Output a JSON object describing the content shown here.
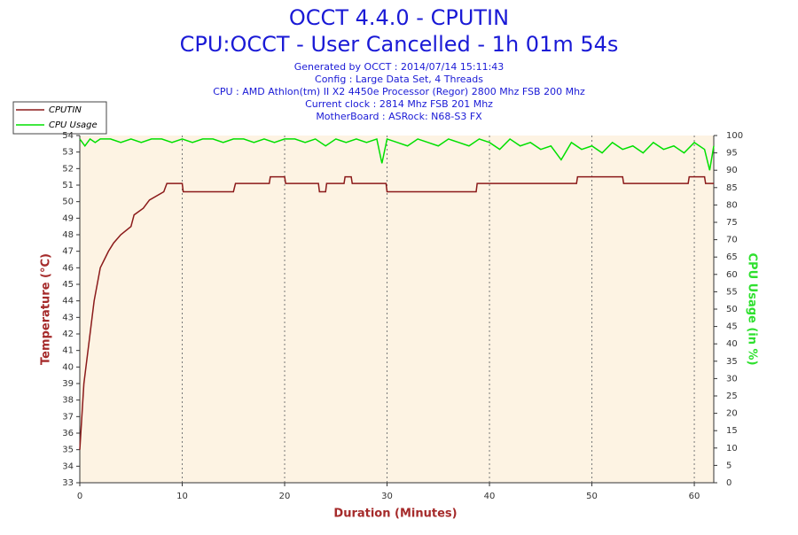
{
  "chart_data": {
    "type": "line",
    "title": "OCCT 4.4.0 - CPUTIN",
    "subtitle": "CPU:OCCT - User Cancelled - 1h 01m 54s",
    "info": [
      "Generated by OCCT : 2014/07/14 15:11:43",
      "Config : Large Data Set, 4 Threads",
      "CPU : AMD Athlon(tm) II X2 4450e Processor (Regor) 2800 Mhz FSB 200 Mhz",
      "Current clock : 2814 Mhz FSB 201 Mhz",
      "MotherBoard : ASRock: N68-S3 FX"
    ],
    "xlabel": "Duration (Minutes)",
    "ylabel": "Temperature (°C)",
    "y2label": "CPU Usage (in %)",
    "xlim": [
      0,
      61.9
    ],
    "xticks": [
      0,
      10,
      20,
      30,
      40,
      50,
      60
    ],
    "ylim": [
      33,
      54
    ],
    "yticks": [
      33,
      34,
      35,
      36,
      37,
      38,
      39,
      40,
      41,
      42,
      43,
      44,
      45,
      46,
      47,
      48,
      49,
      50,
      51,
      52,
      53,
      54
    ],
    "y2lim": [
      0,
      100
    ],
    "y2ticks": [
      0,
      5,
      10,
      15,
      20,
      25,
      30,
      35,
      40,
      45,
      50,
      55,
      60,
      65,
      70,
      75,
      80,
      85,
      90,
      95,
      100
    ],
    "grid": true,
    "legend": "top-left",
    "series": [
      {
        "name": "CPUTIN",
        "color": "#8b1a1a",
        "x": [
          0,
          0.1,
          0.2,
          0.3,
          0.4,
          0.6,
          0.8,
          1.0,
          1.2,
          1.4,
          1.7,
          2.0,
          2.4,
          2.8,
          3.3,
          4.0,
          5.0,
          5.3,
          6.2,
          6.8,
          8.2,
          8.5,
          10.0,
          10.1,
          15.0,
          15.2,
          18.5,
          18.6,
          20.0,
          20.1,
          23.3,
          23.4,
          24.0,
          24.1,
          25.8,
          25.9,
          26.5,
          26.6,
          29.9,
          30.0,
          31.1,
          38.7,
          38.8,
          48.5,
          48.6,
          53.0,
          53.1,
          59.4,
          59.5,
          61.0,
          61.1,
          61.9
        ],
        "values": [
          35,
          36,
          37,
          38,
          39,
          40,
          41,
          42,
          43,
          44,
          45,
          46,
          46.5,
          47,
          47.5,
          48,
          48.5,
          49.2,
          49.6,
          50.1,
          50.6,
          51.1,
          51.1,
          50.6,
          50.6,
          51.1,
          51.1,
          51.5,
          51.5,
          51.1,
          51.1,
          50.6,
          50.6,
          51.1,
          51.1,
          51.5,
          51.5,
          51.1,
          51.1,
          50.6,
          50.6,
          50.6,
          51.1,
          51.1,
          51.5,
          51.5,
          51.1,
          51.1,
          51.5,
          51.5,
          51.1,
          51.1
        ]
      },
      {
        "name": "CPU Usage",
        "color": "#00e000",
        "axis": "y2",
        "x": [
          0,
          0.5,
          1,
          1.5,
          2,
          3,
          4,
          5,
          6,
          7,
          8,
          9,
          10,
          11,
          12,
          13,
          14,
          15,
          16,
          17,
          18,
          19,
          20,
          21,
          22,
          23,
          24,
          25,
          26,
          27,
          28,
          29,
          29.5,
          30,
          31,
          32,
          33,
          34,
          35,
          36,
          37,
          38,
          39,
          40,
          41,
          42,
          43,
          44,
          45,
          46,
          47,
          48,
          49,
          50,
          51,
          52,
          53,
          54,
          55,
          56,
          57,
          58,
          59,
          60,
          61,
          61.5,
          61.9
        ],
        "values": [
          99,
          97,
          99,
          98,
          99,
          99,
          98,
          99,
          98,
          99,
          99,
          98,
          99,
          98,
          99,
          99,
          98,
          99,
          99,
          98,
          99,
          98,
          99,
          99,
          98,
          99,
          97,
          99,
          98,
          99,
          98,
          99,
          92,
          99,
          98,
          97,
          99,
          98,
          97,
          99,
          98,
          97,
          99,
          98,
          96,
          99,
          97,
          98,
          96,
          97,
          93,
          98,
          96,
          97,
          95,
          98,
          96,
          97,
          95,
          98,
          96,
          97,
          95,
          98,
          96,
          90,
          97
        ]
      }
    ]
  }
}
